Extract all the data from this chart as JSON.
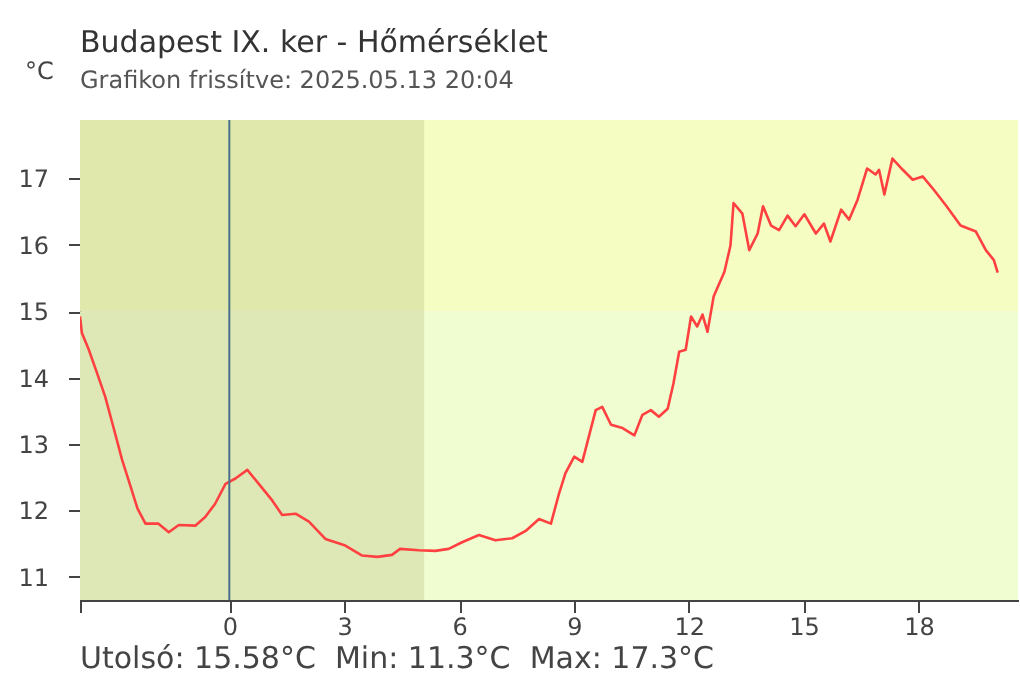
{
  "chart_data": {
    "type": "line",
    "title": "Budapest IX. ker - Hőmérséklet",
    "subtitle": "Grafikon frissítve: 2025.05.13 20:04",
    "ylabel": "°C",
    "annotations": [
      "Utolsó: 15.58°C  Min: 11.3°C  Max: 17.3°C"
    ],
    "xlim": [
      -3.9,
      20.6
    ],
    "xticks": [
      {
        "value": -3.9,
        "label": null
      },
      0,
      3,
      6,
      9,
      12,
      15,
      18
    ],
    "ylim": [
      10.65,
      17.88
    ],
    "yticks": [
      11,
      12,
      13,
      14,
      15,
      16,
      17
    ],
    "grid": false,
    "legend": false,
    "bands": [
      {
        "axis": "y",
        "from": 15,
        "to": 17.88,
        "color": "#f5fdc3"
      },
      {
        "axis": "y",
        "from": 10.65,
        "to": 15,
        "color": "#f0fdd0"
      },
      {
        "axis": "x",
        "from": -3.9,
        "to": 5.09,
        "color": "#6b6b1a"
      }
    ],
    "ref_lines": [
      {
        "axis": "x",
        "value": 0,
        "color": "#4a6f8a"
      }
    ],
    "series": [
      {
        "color": "#ff4040",
        "x": [
          -3.9,
          -3.85,
          -3.67,
          -3.45,
          -3.24,
          -3.03,
          -2.8,
          -2.58,
          -2.4,
          -2.19,
          -1.85,
          -1.58,
          -1.32,
          -0.89,
          -0.63,
          -0.37,
          -0.1,
          0.16,
          0.47,
          0.77,
          1.12,
          1.38,
          1.73,
          2.08,
          2.51,
          3.03,
          3.47,
          3.87,
          4.25,
          4.46,
          4.95,
          5.38,
          5.73,
          6.08,
          6.52,
          6.95,
          7.39,
          7.74,
          8.09,
          8.4,
          8.61,
          8.78,
          9.01,
          9.22,
          9.39,
          9.57,
          9.74,
          9.97,
          10.27,
          10.58,
          10.79,
          11.01,
          11.22,
          11.45,
          11.6,
          11.75,
          11.92,
          12.06,
          12.22,
          12.36,
          12.49,
          12.65,
          12.93,
          13.09,
          13.17,
          13.4,
          13.58,
          13.8,
          13.94,
          14.15,
          14.36,
          14.58,
          14.79,
          15.02,
          15.32,
          15.53,
          15.7,
          15.98,
          16.19,
          16.41,
          16.66,
          16.88,
          16.97,
          17.11,
          17.32,
          17.59,
          17.85,
          18.11,
          18.4,
          18.71,
          19.1,
          19.5,
          19.76,
          19.97,
          20.07
        ],
        "values": [
          14.92,
          14.67,
          14.42,
          14.06,
          13.71,
          13.26,
          12.76,
          12.36,
          12.03,
          11.8,
          11.8,
          11.67,
          11.78,
          11.77,
          11.9,
          12.1,
          12.4,
          12.48,
          12.61,
          12.4,
          12.15,
          11.93,
          11.95,
          11.83,
          11.57,
          11.47,
          11.32,
          11.3,
          11.33,
          11.42,
          11.4,
          11.39,
          11.42,
          11.52,
          11.63,
          11.55,
          11.58,
          11.69,
          11.87,
          11.8,
          12.25,
          12.56,
          12.81,
          12.73,
          13.11,
          13.51,
          13.56,
          13.29,
          13.24,
          13.13,
          13.44,
          13.51,
          13.41,
          13.53,
          13.91,
          14.39,
          14.42,
          14.92,
          14.77,
          14.95,
          14.69,
          15.22,
          15.59,
          15.99,
          16.63,
          16.47,
          15.92,
          16.17,
          16.58,
          16.29,
          16.22,
          16.44,
          16.28,
          16.46,
          16.17,
          16.32,
          16.05,
          16.53,
          16.38,
          16.68,
          17.15,
          17.06,
          17.13,
          16.76,
          17.3,
          17.13,
          16.98,
          17.03,
          16.83,
          16.6,
          16.29,
          16.2,
          15.92,
          15.77,
          15.58
        ]
      }
    ]
  }
}
